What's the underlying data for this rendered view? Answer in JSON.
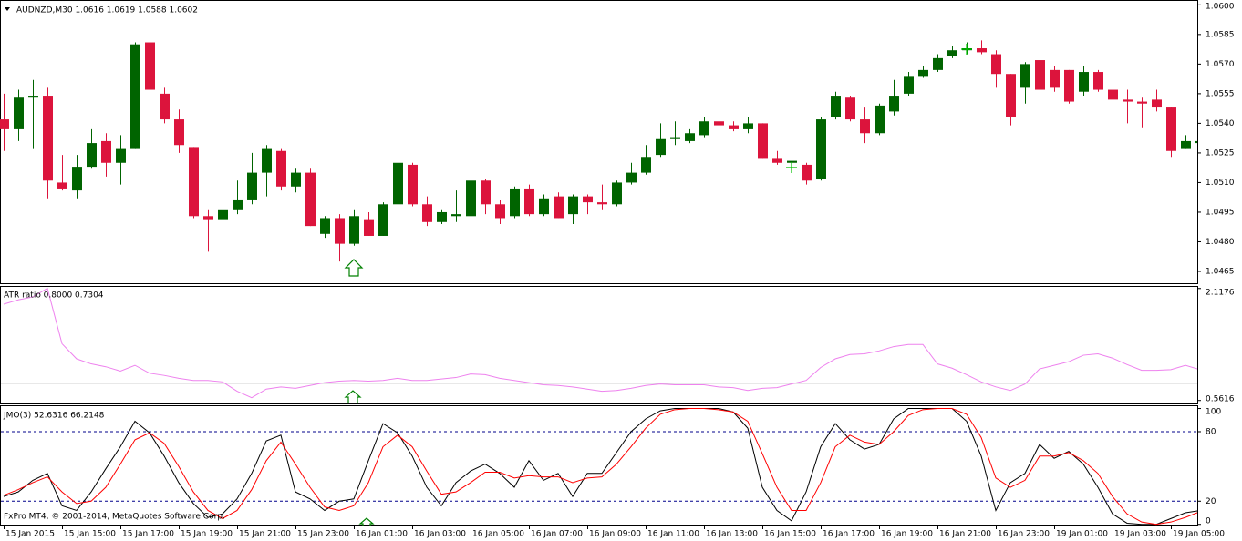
{
  "chart_data": [
    {
      "type": "candlestick",
      "title": "AUDNZD,M30  1.0616 1.0619 1.0588 1.0602",
      "categories": [
        "15 Jan 2015",
        null,
        null,
        null,
        "15 Jan 15:00",
        null,
        null,
        null,
        "15 Jan 17:00",
        null,
        null,
        null,
        "15 Jan 19:00",
        null,
        null,
        null,
        "15 Jan 21:00",
        null,
        null,
        null,
        "15 Jan 23:00",
        null,
        null,
        null,
        "16 Jan 01:00",
        null,
        null,
        null,
        "16 Jan 03:00",
        null,
        null,
        null,
        "16 Jan 05:00",
        null,
        null,
        null,
        "16 Jan 07:00",
        null,
        null,
        null,
        "16 Jan 09:00",
        null,
        null,
        null,
        "16 Jan 11:00",
        null,
        null,
        null,
        "16 Jan 13:00",
        null,
        null,
        null,
        "16 Jan 15:00",
        null,
        null,
        null,
        "16 Jan 17:00",
        null,
        null,
        null,
        "16 Jan 19:00",
        null,
        null,
        null,
        "16 Jan 21:00",
        null,
        null,
        null,
        "16 Jan 23:00",
        null,
        null,
        null,
        "19 Jan 01:00",
        null,
        null,
        null,
        "19 Jan 03:00",
        null,
        null,
        null,
        "19 Jan 05:00",
        null,
        null
      ],
      "open": [
        1.0542,
        1.0537,
        1.0553,
        1.0554,
        1.051,
        1.0506,
        1.0518,
        1.0531,
        1.052,
        1.0527,
        1.0581,
        1.0555,
        1.0542,
        1.0528,
        1.0493,
        1.0491,
        1.0496,
        1.0501,
        1.0515,
        1.0526,
        1.0508,
        1.0515,
        1.0484,
        1.0492,
        1.0479,
        1.0491,
        1.0483,
        1.0499,
        1.0519,
        1.0499,
        1.049,
        1.0493,
        1.0493,
        1.0511,
        1.0499,
        1.0493,
        1.0507,
        1.0494,
        1.0503,
        1.0494,
        1.0503,
        1.05,
        1.0499,
        1.051,
        1.0515,
        1.0524,
        1.0532,
        1.0531,
        1.0534,
        1.0541,
        1.0539,
        1.0537,
        1.054,
        1.0522,
        1.052,
        1.0519,
        1.0512,
        1.0543,
        1.0553,
        1.0542,
        1.0535,
        1.0546,
        1.0555,
        1.0564,
        1.0567,
        1.0574,
        1.0577,
        1.0578,
        1.0575,
        1.0565,
        1.0558,
        1.0572,
        1.0567,
        1.0567,
        1.0556,
        1.0566,
        1.0557,
        1.0552,
        1.0551,
        1.0552,
        1.0548,
        1.0527,
        1.053
      ],
      "high": [
        1.0555,
        1.0557,
        1.0562,
        1.0558,
        1.0524,
        1.0524,
        1.0537,
        1.0535,
        1.0534,
        1.0581,
        1.0582,
        1.0558,
        1.0547,
        1.0528,
        1.0496,
        1.0498,
        1.0511,
        1.0525,
        1.0529,
        1.0527,
        1.0517,
        1.0517,
        1.0493,
        1.0494,
        1.0496,
        1.0495,
        1.05,
        1.0528,
        1.052,
        1.0503,
        1.0496,
        1.0506,
        1.0512,
        1.0512,
        1.0501,
        1.0508,
        1.0509,
        1.0504,
        1.0505,
        1.0504,
        1.0504,
        1.0509,
        1.0511,
        1.052,
        1.0529,
        1.054,
        1.0541,
        1.0537,
        1.0543,
        1.0546,
        1.0541,
        1.0543,
        1.054,
        1.0526,
        1.0528,
        1.052,
        1.0543,
        1.0556,
        1.0554,
        1.0548,
        1.055,
        1.0562,
        1.0566,
        1.0569,
        1.0575,
        1.0579,
        1.0581,
        1.0582,
        1.0577,
        1.0565,
        1.0571,
        1.0576,
        1.0569,
        1.0567,
        1.0569,
        1.0567,
        1.0559,
        1.0557,
        1.0553,
        1.0557,
        1.0548,
        1.0534,
        1.0537
      ],
      "low": [
        1.0526,
        1.0531,
        1.0527,
        1.0502,
        1.0506,
        1.0502,
        1.0517,
        1.0513,
        1.0509,
        1.0527,
        1.0549,
        1.054,
        1.0525,
        1.0492,
        1.0475,
        1.0475,
        1.0494,
        1.0499,
        1.0503,
        1.0506,
        1.0505,
        1.0488,
        1.0482,
        1.047,
        1.0478,
        1.0483,
        1.0483,
        1.0499,
        1.0498,
        1.0488,
        1.0489,
        1.049,
        1.0491,
        1.0494,
        1.0489,
        1.0492,
        1.0493,
        1.0493,
        1.0492,
        1.0489,
        1.0494,
        1.0496,
        1.0498,
        1.0509,
        1.0514,
        1.0523,
        1.0529,
        1.053,
        1.0533,
        1.0537,
        1.0536,
        1.0535,
        1.0522,
        1.0519,
        1.0515,
        1.0509,
        1.0511,
        1.0542,
        1.0541,
        1.053,
        1.0534,
        1.0544,
        1.0554,
        1.0563,
        1.0566,
        1.0573,
        1.0575,
        1.0575,
        1.0558,
        1.0539,
        1.055,
        1.0555,
        1.0556,
        1.055,
        1.0554,
        1.0556,
        1.0546,
        1.054,
        1.0538,
        1.0546,
        1.0523,
        1.0527,
        1.0528
      ],
      "close": [
        1.0537,
        1.0553,
        1.0554,
        1.0511,
        1.0507,
        1.0518,
        1.053,
        1.052,
        1.0527,
        1.058,
        1.0557,
        1.0542,
        1.0529,
        1.0493,
        1.0491,
        1.0496,
        1.0501,
        1.0515,
        1.0527,
        1.0508,
        1.0515,
        1.0488,
        1.0492,
        1.0479,
        1.0493,
        1.0483,
        1.0499,
        1.052,
        1.0499,
        1.049,
        1.0495,
        1.0494,
        1.0511,
        1.0499,
        1.0492,
        1.0507,
        1.0494,
        1.0502,
        1.0492,
        1.0503,
        1.05,
        1.0499,
        1.051,
        1.0515,
        1.0523,
        1.0532,
        1.0533,
        1.0535,
        1.0541,
        1.0539,
        1.0537,
        1.054,
        1.0522,
        1.052,
        1.0521,
        1.0511,
        1.0542,
        1.0554,
        1.0542,
        1.0535,
        1.0549,
        1.0554,
        1.0564,
        1.0567,
        1.0573,
        1.0577,
        1.0578,
        1.0576,
        1.0565,
        1.0543,
        1.057,
        1.0557,
        1.0558,
        1.0551,
        1.0566,
        1.0557,
        1.0552,
        1.0551,
        1.055,
        1.0548,
        1.0526,
        1.0531,
        1.0531
      ],
      "up_color": "#006400",
      "down_color": "#dc143c",
      "ylim": [
        1.0459,
        1.0602
      ],
      "yticks": [
        {
          "value": 1.06,
          "label": "1.0600"
        },
        1.0585,
        {
          "value": 1.057,
          "label": "1.0570"
        },
        1.0555,
        {
          "value": 1.054,
          "label": "1.0540"
        },
        1.0525,
        {
          "value": 1.051,
          "label": "1.0510"
        },
        1.0495,
        {
          "value": 1.048,
          "label": "1.0480"
        },
        1.0465
      ]
    },
    {
      "type": "line",
      "title": "ATR ratio 0.8000 0.7304",
      "series": [
        {
          "color": "#ee82ee",
          "values": [
            1.9,
            1.96,
            2.0,
            2.12,
            1.35,
            1.14,
            1.07,
            1.03,
            0.97,
            1.05,
            0.94,
            0.91,
            0.87,
            0.84,
            0.84,
            0.82,
            0.69,
            0.6,
            0.72,
            0.75,
            0.73,
            0.77,
            0.81,
            0.83,
            0.84,
            0.83,
            0.84,
            0.87,
            0.84,
            0.84,
            0.86,
            0.88,
            0.93,
            0.92,
            0.87,
            0.84,
            0.81,
            0.78,
            0.77,
            0.75,
            0.72,
            0.69,
            0.7,
            0.73,
            0.77,
            0.79,
            0.78,
            0.78,
            0.78,
            0.75,
            0.74,
            0.7,
            0.73,
            0.74,
            0.79,
            0.84,
            1.02,
            1.14,
            1.2,
            1.21,
            1.25,
            1.31,
            1.34,
            1.34,
            1.07,
            1.01,
            0.92,
            0.82,
            0.75,
            0.7,
            0.79,
            1.0,
            1.05,
            1.1,
            1.19,
            1.21,
            1.15,
            1.06,
            0.98,
            0.98,
            0.99,
            1.05,
            0.99
          ]
        }
      ],
      "level": 0.8,
      "level_color": "#c0c0c0",
      "ylim": [
        0.52,
        2.14
      ],
      "yticks": [
        2.1176,
        0.5616
      ]
    },
    {
      "type": "line",
      "title": "JMO(3) 52.6316 66.2148",
      "series": [
        {
          "color": "#000000",
          "values": [
            24,
            28,
            38,
            44,
            16,
            12,
            28,
            48,
            67,
            89,
            79,
            59,
            36,
            18,
            6,
            9,
            22,
            44,
            72,
            77,
            28,
            22,
            12,
            20,
            22,
            55,
            87,
            79,
            59,
            32,
            16,
            36,
            46,
            52,
            44,
            32,
            55,
            38,
            44,
            24,
            44,
            44,
            62,
            80,
            91,
            98,
            100,
            100,
            100,
            100,
            97,
            83,
            32,
            12,
            3,
            28,
            67,
            87,
            73,
            65,
            69,
            91,
            100,
            100,
            100,
            100,
            89,
            59,
            12,
            36,
            44,
            69,
            57,
            63,
            52,
            32,
            9,
            1,
            0,
            0,
            5,
            10,
            12
          ]
        },
        {
          "color": "#ff0000",
          "values": [
            25,
            30,
            36,
            41,
            28,
            18,
            20,
            32,
            52,
            73,
            79,
            70,
            50,
            28,
            12,
            5,
            12,
            30,
            55,
            71,
            52,
            32,
            15,
            12,
            16,
            36,
            67,
            77,
            67,
            46,
            26,
            28,
            36,
            45,
            45,
            40,
            42,
            41,
            41,
            36,
            40,
            41,
            52,
            67,
            83,
            95,
            99,
            100,
            100,
            99,
            97,
            89,
            61,
            32,
            12,
            12,
            36,
            67,
            77,
            71,
            69,
            80,
            94,
            99,
            100,
            100,
            95,
            75,
            40,
            32,
            38,
            59,
            59,
            62,
            55,
            44,
            24,
            9,
            2,
            0,
            2,
            6,
            11
          ]
        }
      ],
      "levels": [
        80,
        20
      ],
      "level_color": "#00008b",
      "ylim": [
        -1,
        102
      ],
      "yticks": [
        100,
        80,
        20,
        0
      ]
    }
  ],
  "footer": "FxPro MT4, © 2001-2014, MetaQuotes Software Corp."
}
